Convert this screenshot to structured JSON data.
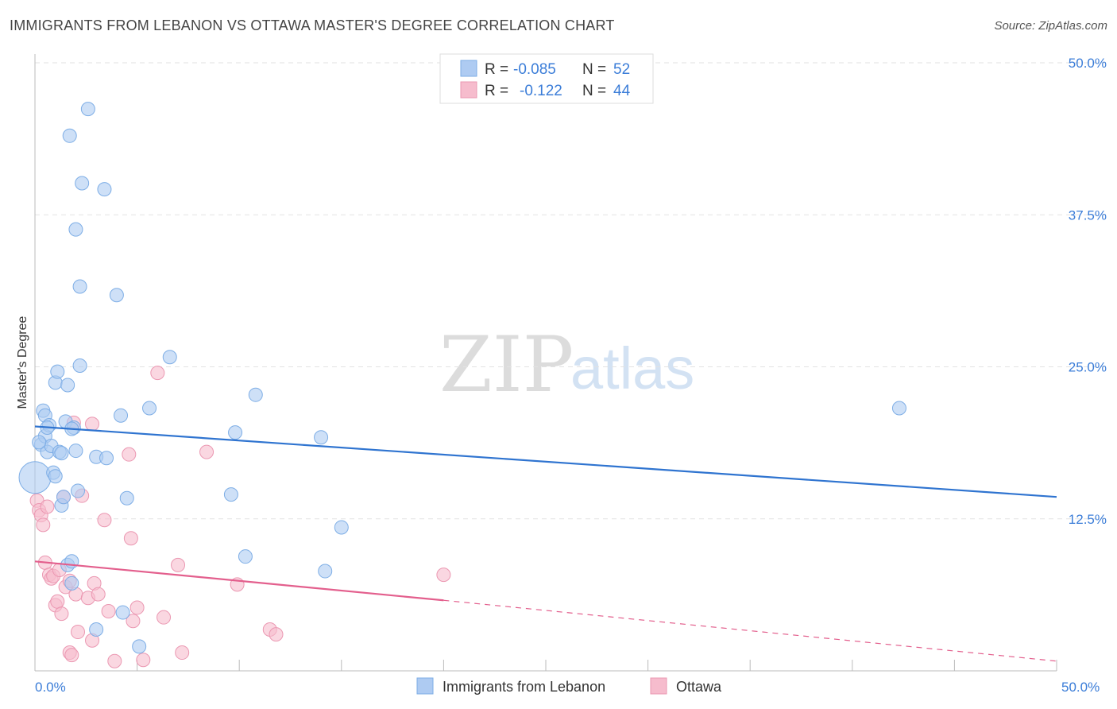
{
  "title": "IMMIGRANTS FROM LEBANON VS OTTAWA MASTER'S DEGREE CORRELATION CHART",
  "source": "Source: ZipAtlas.com",
  "watermark": {
    "zip": "ZIP",
    "atlas": "atlas"
  },
  "legend": {
    "rows": [
      {
        "r_label": "R =",
        "r_value": "-0.085",
        "n_label": "N =",
        "n_value": "52",
        "color": "#aecbf2"
      },
      {
        "r_label": "R =",
        "r_value": "-0.122",
        "n_label": "N =",
        "n_value": "44",
        "color": "#f6bccd"
      }
    ]
  },
  "bottom_legend": [
    {
      "label": "Immigrants from Lebanon",
      "color": "#aecbf2"
    },
    {
      "label": "Ottawa",
      "color": "#f6bccd"
    }
  ],
  "chart_data": {
    "type": "scatter",
    "title": "IMMIGRANTS FROM LEBANON VS OTTAWA MASTER'S DEGREE CORRELATION CHART",
    "xlabel": "",
    "ylabel": "Master's Degree",
    "xlim": [
      0,
      50
    ],
    "ylim": [
      0,
      50
    ],
    "x_tick_labels": [
      "0.0%",
      "50.0%"
    ],
    "y_tick_labels": [
      "12.5%",
      "25.0%",
      "37.5%",
      "50.0%"
    ],
    "y_ticks": [
      12.5,
      25.0,
      37.5,
      50.0
    ],
    "grid": true,
    "legend_position": "top-center",
    "series": [
      {
        "name": "Immigrants from Lebanon",
        "color": "#aecbf2",
        "stroke": "#7eaee6",
        "trend_color": "#2f74d0",
        "trend": {
          "x": [
            0,
            50
          ],
          "y": [
            20.1,
            14.3
          ]
        },
        "points": [
          {
            "x": 0.3,
            "y": 18.6,
            "big": false
          },
          {
            "x": 0.0,
            "y": 15.9,
            "big": true
          },
          {
            "x": 0.4,
            "y": 21.4
          },
          {
            "x": 0.5,
            "y": 19.3
          },
          {
            "x": 0.5,
            "y": 21.0
          },
          {
            "x": 0.6,
            "y": 18.0
          },
          {
            "x": 0.7,
            "y": 20.2
          },
          {
            "x": 0.8,
            "y": 18.5
          },
          {
            "x": 0.9,
            "y": 16.3
          },
          {
            "x": 1.0,
            "y": 16.0
          },
          {
            "x": 1.0,
            "y": 23.7
          },
          {
            "x": 1.1,
            "y": 24.6
          },
          {
            "x": 1.2,
            "y": 18.0
          },
          {
            "x": 1.3,
            "y": 13.6
          },
          {
            "x": 1.4,
            "y": 14.3
          },
          {
            "x": 1.3,
            "y": 17.9
          },
          {
            "x": 1.5,
            "y": 20.5
          },
          {
            "x": 1.6,
            "y": 8.7
          },
          {
            "x": 1.6,
            "y": 23.5
          },
          {
            "x": 1.7,
            "y": 44.0
          },
          {
            "x": 1.8,
            "y": 9.0
          },
          {
            "x": 1.8,
            "y": 7.2
          },
          {
            "x": 1.9,
            "y": 20.0
          },
          {
            "x": 2.0,
            "y": 36.3
          },
          {
            "x": 2.1,
            "y": 14.8
          },
          {
            "x": 2.2,
            "y": 31.6
          },
          {
            "x": 2.2,
            "y": 25.1
          },
          {
            "x": 2.3,
            "y": 40.1
          },
          {
            "x": 2.6,
            "y": 46.2
          },
          {
            "x": 3.0,
            "y": 3.4
          },
          {
            "x": 3.0,
            "y": 17.6
          },
          {
            "x": 3.4,
            "y": 39.6
          },
          {
            "x": 3.5,
            "y": 17.5
          },
          {
            "x": 4.0,
            "y": 30.9
          },
          {
            "x": 4.2,
            "y": 21.0
          },
          {
            "x": 4.3,
            "y": 4.8
          },
          {
            "x": 4.5,
            "y": 14.2
          },
          {
            "x": 5.1,
            "y": 2.0
          },
          {
            "x": 5.6,
            "y": 21.6
          },
          {
            "x": 6.6,
            "y": 25.8
          },
          {
            "x": 9.6,
            "y": 14.5
          },
          {
            "x": 9.8,
            "y": 19.6
          },
          {
            "x": 10.3,
            "y": 9.4
          },
          {
            "x": 10.8,
            "y": 22.7
          },
          {
            "x": 14.0,
            "y": 19.2
          },
          {
            "x": 14.2,
            "y": 8.2
          },
          {
            "x": 15.0,
            "y": 11.8
          },
          {
            "x": 42.3,
            "y": 21.6
          },
          {
            "x": 0.2,
            "y": 18.8
          },
          {
            "x": 0.6,
            "y": 20.0
          },
          {
            "x": 1.8,
            "y": 19.9
          },
          {
            "x": 2.0,
            "y": 18.1
          }
        ]
      },
      {
        "name": "Ottawa",
        "color": "#f6bccd",
        "stroke": "#eb98b2",
        "trend_color": "#e35f8d",
        "trend": {
          "x": [
            0,
            20
          ],
          "y": [
            9.0,
            5.8
          ]
        },
        "trend_dashed": {
          "x": [
            20,
            50
          ],
          "y": [
            5.8,
            0.8
          ]
        },
        "points": [
          {
            "x": 0.1,
            "y": 14.0
          },
          {
            "x": 0.2,
            "y": 13.2
          },
          {
            "x": 0.3,
            "y": 12.8
          },
          {
            "x": 0.4,
            "y": 12.0
          },
          {
            "x": 0.5,
            "y": 8.9
          },
          {
            "x": 0.6,
            "y": 13.5
          },
          {
            "x": 0.7,
            "y": 7.9
          },
          {
            "x": 0.8,
            "y": 7.6
          },
          {
            "x": 0.9,
            "y": 7.8
          },
          {
            "x": 1.0,
            "y": 5.4
          },
          {
            "x": 1.1,
            "y": 5.7
          },
          {
            "x": 1.2,
            "y": 8.3
          },
          {
            "x": 1.3,
            "y": 4.7
          },
          {
            "x": 1.4,
            "y": 14.3
          },
          {
            "x": 1.5,
            "y": 6.9
          },
          {
            "x": 1.7,
            "y": 7.4
          },
          {
            "x": 1.7,
            "y": 1.5
          },
          {
            "x": 1.8,
            "y": 1.3
          },
          {
            "x": 2.0,
            "y": 6.3
          },
          {
            "x": 2.1,
            "y": 3.2
          },
          {
            "x": 2.3,
            "y": 14.4
          },
          {
            "x": 2.6,
            "y": 6.0
          },
          {
            "x": 2.8,
            "y": 2.5
          },
          {
            "x": 2.9,
            "y": 7.2
          },
          {
            "x": 3.1,
            "y": 6.3
          },
          {
            "x": 3.4,
            "y": 12.4
          },
          {
            "x": 3.6,
            "y": 4.9
          },
          {
            "x": 3.9,
            "y": 0.8
          },
          {
            "x": 4.6,
            "y": 17.8
          },
          {
            "x": 4.7,
            "y": 10.9
          },
          {
            "x": 4.8,
            "y": 4.1
          },
          {
            "x": 5.0,
            "y": 5.2
          },
          {
            "x": 5.3,
            "y": 0.9
          },
          {
            "x": 6.0,
            "y": 24.5
          },
          {
            "x": 6.3,
            "y": 4.4
          },
          {
            "x": 7.0,
            "y": 8.7
          },
          {
            "x": 7.2,
            "y": 1.5
          },
          {
            "x": 8.4,
            "y": 18.0
          },
          {
            "x": 9.9,
            "y": 7.1
          },
          {
            "x": 11.5,
            "y": 3.4
          },
          {
            "x": 11.8,
            "y": 3.0
          },
          {
            "x": 20.0,
            "y": 7.9
          },
          {
            "x": 1.9,
            "y": 20.4
          },
          {
            "x": 2.8,
            "y": 20.3
          }
        ]
      }
    ]
  }
}
